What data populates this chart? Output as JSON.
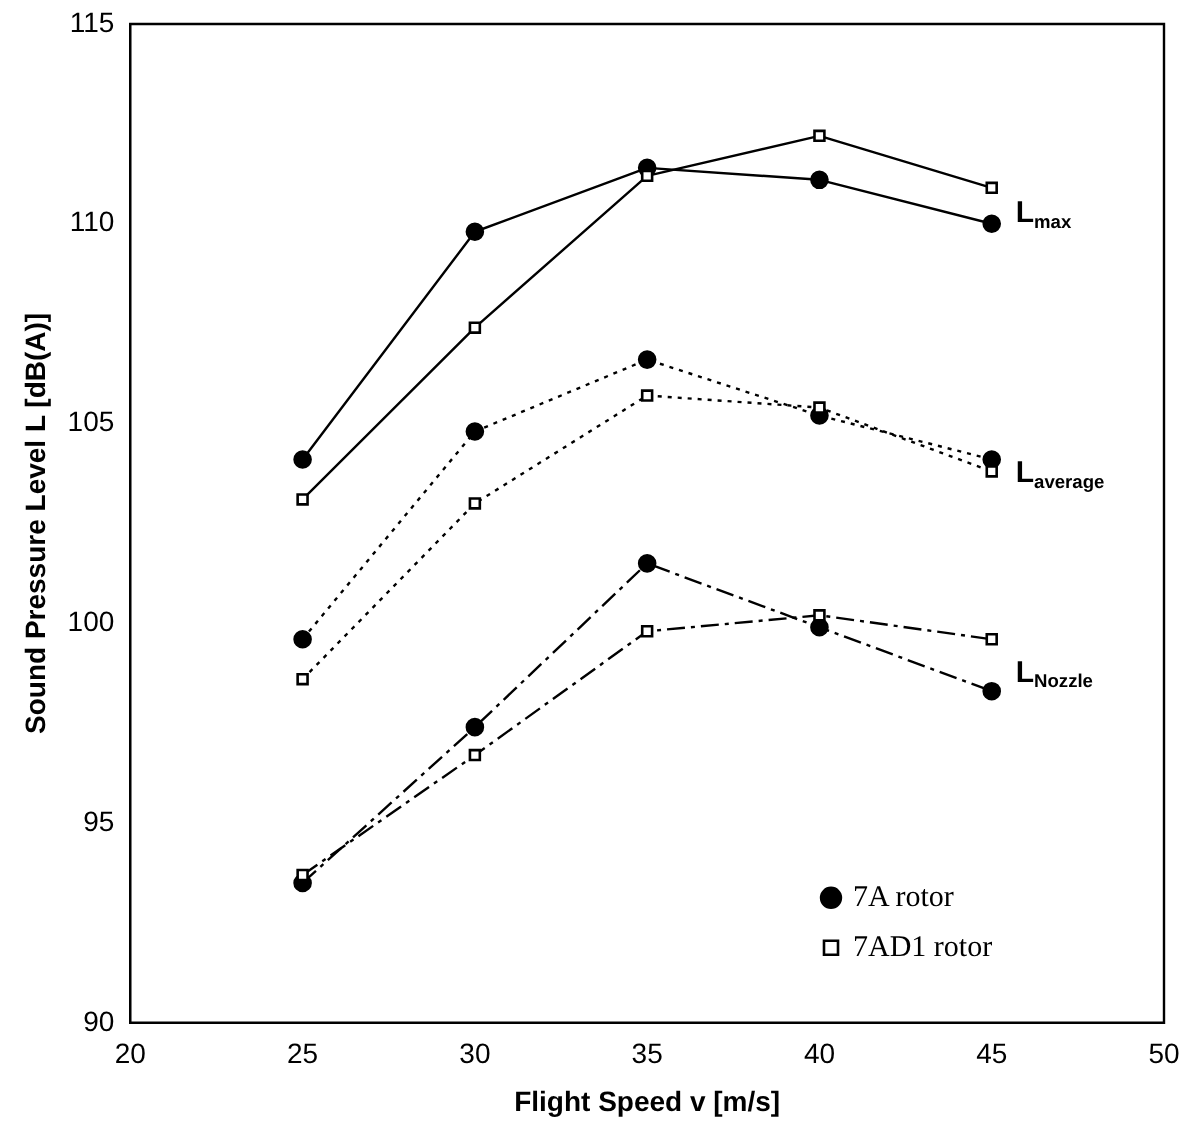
{
  "chart_data": {
    "type": "line",
    "xlabel": "Flight Speed v [m/s]",
    "ylabel": "Sound Pressure Level L [dB(A)]",
    "x": [
      25,
      30,
      35,
      40,
      45
    ],
    "series": [
      {
        "name": "7A rotor",
        "color": "#000000",
        "marker": "circle",
        "line_style": "solid",
        "values": [
          104.1,
          109.8,
          111.4,
          111.1,
          110.0
        ]
      },
      {
        "name": "7AD1 rotor",
        "color": "#000000",
        "marker": "square",
        "line_style": "solid",
        "values": [
          103.1,
          107.4,
          111.2,
          112.2,
          110.9
        ]
      },
      {
        "color": "#000000",
        "marker": "circle",
        "line_style": "dotted",
        "values": [
          99.6,
          104.8,
          106.6,
          105.2,
          104.1
        ]
      },
      {
        "color": "#000000",
        "marker": "square",
        "line_style": "dotted",
        "values": [
          98.6,
          103.0,
          105.7,
          105.4,
          103.8
        ]
      },
      {
        "color": "#000000",
        "marker": "circle",
        "line_style": "dashed",
        "values": [
          93.5,
          97.4,
          101.5,
          99.9,
          98.3
        ]
      },
      {
        "color": "#000000",
        "marker": "square",
        "line_style": "dashed",
        "values": [
          93.7,
          96.7,
          99.8,
          100.2,
          99.6
        ]
      }
    ],
    "annotations": [
      "L$_{max}$",
      "L$_{average}$",
      "L$_{Nozzle}$"
    ],
    "xlim": [
      20,
      50
    ],
    "xticks": [
      20,
      25,
      30,
      35,
      40,
      45,
      50
    ],
    "ylim": [
      90,
      115
    ],
    "yticks": [
      90,
      95,
      100,
      105,
      110,
      115
    ],
    "grid": false,
    "legend": "bottom right"
  }
}
